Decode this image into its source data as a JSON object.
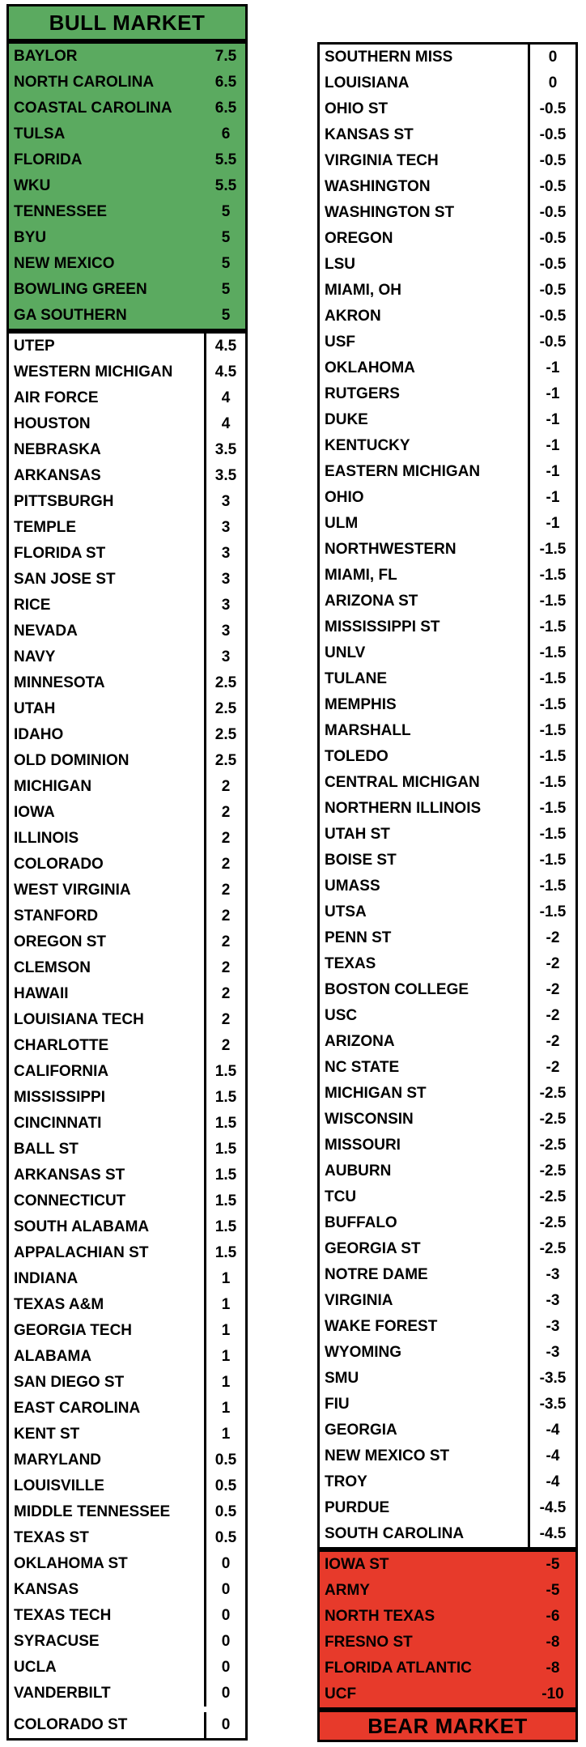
{
  "colors": {
    "bull_green": "#5BAA60",
    "bear_red": "#E73A2B",
    "border_black": "#000000",
    "background": "#FFFFFF"
  },
  "bull_header": {
    "label": "BULL MARKET"
  },
  "bear_footer": {
    "label": "BEAR MARKET"
  },
  "left_column": {
    "bull_rows": [
      {
        "team": "BAYLOR",
        "value": "7.5"
      },
      {
        "team": "NORTH CAROLINA",
        "value": "6.5"
      },
      {
        "team": "COASTAL CAROLINA",
        "value": "6.5"
      },
      {
        "team": "TULSA",
        "value": "6"
      },
      {
        "team": "FLORIDA",
        "value": "5.5"
      },
      {
        "team": "WKU",
        "value": "5.5"
      },
      {
        "team": "TENNESSEE",
        "value": "5"
      },
      {
        "team": "BYU",
        "value": "5"
      },
      {
        "team": "NEW MEXICO",
        "value": "5"
      },
      {
        "team": "BOWLING GREEN",
        "value": "5"
      },
      {
        "team": "GA SOUTHERN",
        "value": "5"
      }
    ],
    "neutral_rows": [
      {
        "team": "UTEP",
        "value": "4.5"
      },
      {
        "team": "WESTERN MICHIGAN",
        "value": "4.5"
      },
      {
        "team": "AIR FORCE",
        "value": "4"
      },
      {
        "team": "HOUSTON",
        "value": "4"
      },
      {
        "team": "NEBRASKA",
        "value": "3.5"
      },
      {
        "team": "ARKANSAS",
        "value": "3.5"
      },
      {
        "team": "PITTSBURGH",
        "value": "3"
      },
      {
        "team": "TEMPLE",
        "value": "3"
      },
      {
        "team": "FLORIDA ST",
        "value": "3"
      },
      {
        "team": "SAN JOSE ST",
        "value": "3"
      },
      {
        "team": "RICE",
        "value": "3"
      },
      {
        "team": "NEVADA",
        "value": "3"
      },
      {
        "team": "NAVY",
        "value": "3"
      },
      {
        "team": "MINNESOTA",
        "value": "2.5"
      },
      {
        "team": "UTAH",
        "value": "2.5"
      },
      {
        "team": "IDAHO",
        "value": "2.5"
      },
      {
        "team": "OLD DOMINION",
        "value": "2.5"
      },
      {
        "team": "MICHIGAN",
        "value": "2"
      },
      {
        "team": "IOWA",
        "value": "2"
      },
      {
        "team": "ILLINOIS",
        "value": "2"
      },
      {
        "team": "COLORADO",
        "value": "2"
      },
      {
        "team": "WEST VIRGINIA",
        "value": "2"
      },
      {
        "team": "STANFORD",
        "value": "2"
      },
      {
        "team": "OREGON ST",
        "value": "2"
      },
      {
        "team": "CLEMSON",
        "value": "2"
      },
      {
        "team": "HAWAII",
        "value": "2"
      },
      {
        "team": "LOUISIANA TECH",
        "value": "2"
      },
      {
        "team": "CHARLOTTE",
        "value": "2"
      },
      {
        "team": "CALIFORNIA",
        "value": "1.5"
      },
      {
        "team": "MISSISSIPPI",
        "value": "1.5"
      },
      {
        "team": "CINCINNATI",
        "value": "1.5"
      },
      {
        "team": "BALL ST",
        "value": "1.5"
      },
      {
        "team": "ARKANSAS ST",
        "value": "1.5"
      },
      {
        "team": "CONNECTICUT",
        "value": "1.5"
      },
      {
        "team": "SOUTH ALABAMA",
        "value": "1.5"
      },
      {
        "team": "APPALACHIAN ST",
        "value": "1.5"
      },
      {
        "team": "INDIANA",
        "value": "1"
      },
      {
        "team": "TEXAS A&M",
        "value": "1"
      },
      {
        "team": "GEORGIA TECH",
        "value": "1"
      },
      {
        "team": "ALABAMA",
        "value": "1"
      },
      {
        "team": "SAN DIEGO ST",
        "value": "1"
      },
      {
        "team": "EAST CAROLINA",
        "value": "1"
      },
      {
        "team": "KENT ST",
        "value": "1"
      },
      {
        "team": "MARYLAND",
        "value": "0.5"
      },
      {
        "team": "LOUISVILLE",
        "value": "0.5"
      },
      {
        "team": "MIDDLE TENNESSEE",
        "value": "0.5"
      },
      {
        "team": "TEXAS ST",
        "value": "0.5"
      },
      {
        "team": "OKLAHOMA ST",
        "value": "0"
      },
      {
        "team": "KANSAS",
        "value": "0"
      },
      {
        "team": "TEXAS TECH",
        "value": "0"
      },
      {
        "team": "SYRACUSE",
        "value": "0"
      },
      {
        "team": "UCLA",
        "value": "0"
      },
      {
        "team": "VANDERBILT",
        "value": "0"
      },
      {
        "team": "COLORADO ST",
        "value": "0"
      }
    ]
  },
  "right_column": {
    "neutral_rows": [
      {
        "team": "SOUTHERN MISS",
        "value": "0"
      },
      {
        "team": "LOUISIANA",
        "value": "0"
      },
      {
        "team": "OHIO ST",
        "value": "-0.5"
      },
      {
        "team": "KANSAS ST",
        "value": "-0.5"
      },
      {
        "team": "VIRGINIA TECH",
        "value": "-0.5"
      },
      {
        "team": "WASHINGTON",
        "value": "-0.5"
      },
      {
        "team": "WASHINGTON ST",
        "value": "-0.5"
      },
      {
        "team": "OREGON",
        "value": "-0.5"
      },
      {
        "team": "LSU",
        "value": "-0.5"
      },
      {
        "team": "MIAMI, OH",
        "value": "-0.5"
      },
      {
        "team": "AKRON",
        "value": "-0.5"
      },
      {
        "team": "USF",
        "value": "-0.5"
      },
      {
        "team": "OKLAHOMA",
        "value": "-1"
      },
      {
        "team": "RUTGERS",
        "value": "-1"
      },
      {
        "team": "DUKE",
        "value": "-1"
      },
      {
        "team": "KENTUCKY",
        "value": "-1"
      },
      {
        "team": "EASTERN MICHIGAN",
        "value": "-1"
      },
      {
        "team": "OHIO",
        "value": "-1"
      },
      {
        "team": "ULM",
        "value": "-1"
      },
      {
        "team": "NORTHWESTERN",
        "value": "-1.5"
      },
      {
        "team": "MIAMI, FL",
        "value": "-1.5"
      },
      {
        "team": "ARIZONA ST",
        "value": "-1.5"
      },
      {
        "team": "MISSISSIPPI ST",
        "value": "-1.5"
      },
      {
        "team": "UNLV",
        "value": "-1.5"
      },
      {
        "team": "TULANE",
        "value": "-1.5"
      },
      {
        "team": "MEMPHIS",
        "value": "-1.5"
      },
      {
        "team": "MARSHALL",
        "value": "-1.5"
      },
      {
        "team": "TOLEDO",
        "value": "-1.5"
      },
      {
        "team": "CENTRAL MICHIGAN",
        "value": "-1.5"
      },
      {
        "team": "NORTHERN ILLINOIS",
        "value": "-1.5"
      },
      {
        "team": "UTAH ST",
        "value": "-1.5"
      },
      {
        "team": "BOISE ST",
        "value": "-1.5"
      },
      {
        "team": "UMASS",
        "value": "-1.5"
      },
      {
        "team": "UTSA",
        "value": "-1.5"
      },
      {
        "team": "PENN ST",
        "value": "-2"
      },
      {
        "team": "TEXAS",
        "value": "-2"
      },
      {
        "team": "BOSTON COLLEGE",
        "value": "-2"
      },
      {
        "team": "USC",
        "value": "-2"
      },
      {
        "team": "ARIZONA",
        "value": "-2"
      },
      {
        "team": "NC STATE",
        "value": "-2"
      },
      {
        "team": "MICHIGAN ST",
        "value": "-2.5"
      },
      {
        "team": "WISCONSIN",
        "value": "-2.5"
      },
      {
        "team": "MISSOURI",
        "value": "-2.5"
      },
      {
        "team": "AUBURN",
        "value": "-2.5"
      },
      {
        "team": "TCU",
        "value": "-2.5"
      },
      {
        "team": "BUFFALO",
        "value": "-2.5"
      },
      {
        "team": "GEORGIA ST",
        "value": "-2.5"
      },
      {
        "team": "NOTRE DAME",
        "value": "-3"
      },
      {
        "team": "VIRGINIA",
        "value": "-3"
      },
      {
        "team": "WAKE FOREST",
        "value": "-3"
      },
      {
        "team": "WYOMING",
        "value": "-3"
      },
      {
        "team": "SMU",
        "value": "-3.5"
      },
      {
        "team": "FIU",
        "value": "-3.5"
      },
      {
        "team": "GEORGIA",
        "value": "-4"
      },
      {
        "team": "NEW MEXICO ST",
        "value": "-4"
      },
      {
        "team": "TROY",
        "value": "-4"
      },
      {
        "team": "PURDUE",
        "value": "-4.5"
      },
      {
        "team": "SOUTH CAROLINA",
        "value": "-4.5"
      }
    ],
    "bear_rows": [
      {
        "team": "IOWA ST",
        "value": "-5"
      },
      {
        "team": "ARMY",
        "value": "-5"
      },
      {
        "team": "NORTH TEXAS",
        "value": "-6"
      },
      {
        "team": "FRESNO ST",
        "value": "-8"
      },
      {
        "team": "FLORIDA ATLANTIC",
        "value": "-8"
      },
      {
        "team": "UCF",
        "value": "-10"
      }
    ]
  }
}
